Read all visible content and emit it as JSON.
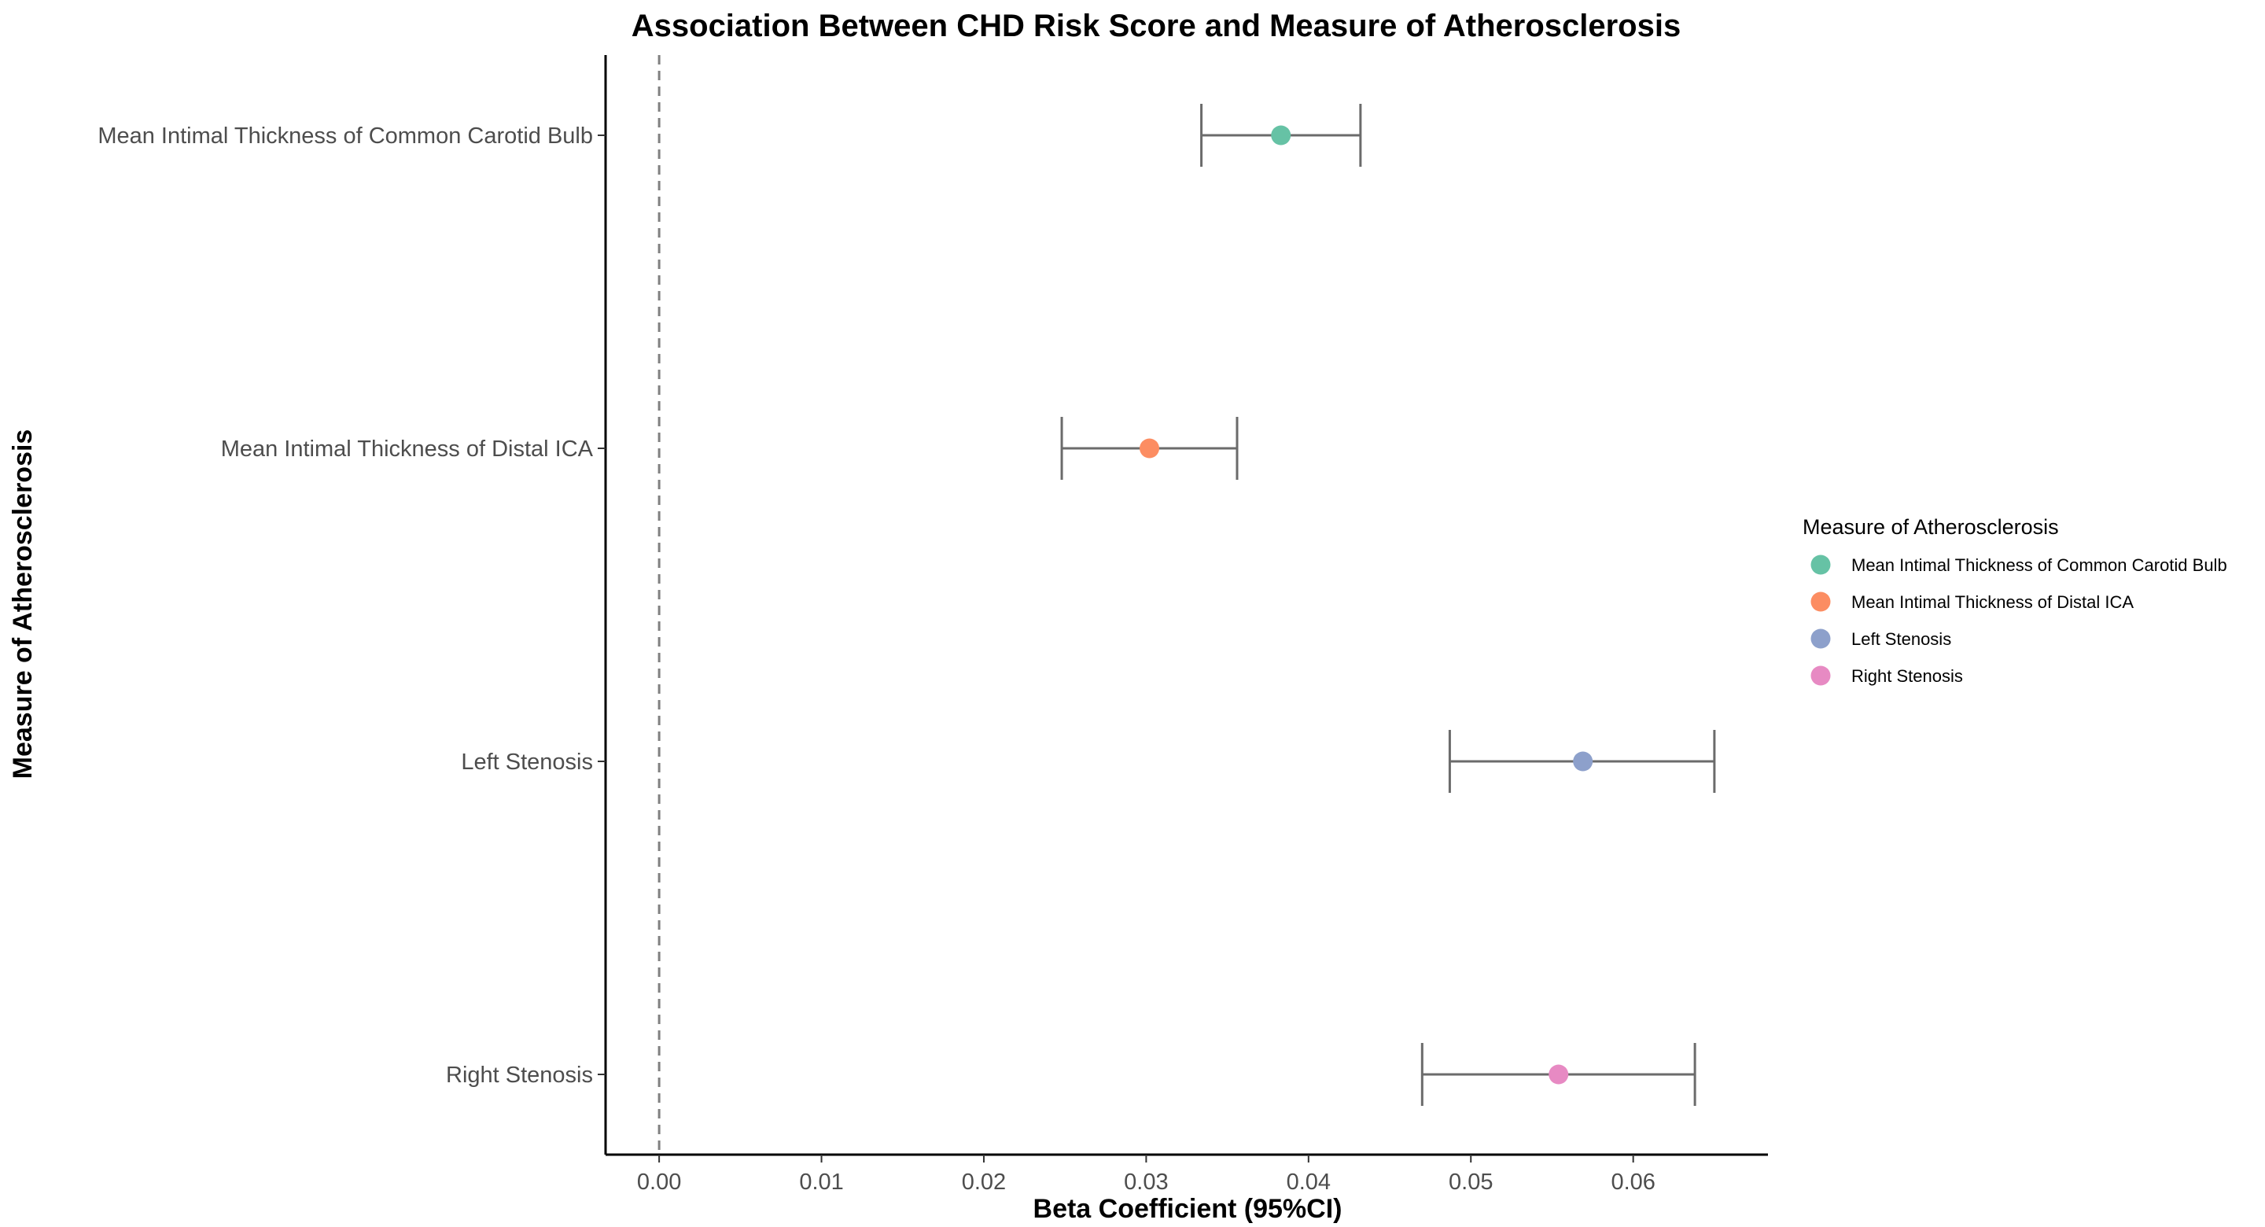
{
  "chart_data": {
    "type": "scatter",
    "title": "Association Between CHD Risk Score and Measure of Atherosclerosis",
    "xlabel": "Beta Coefficient (95%CI)",
    "ylabel": "Measure of Atherosclerosis",
    "xlim": [
      -0.0033,
      0.0683
    ],
    "x_ticks": [
      0.0,
      0.01,
      0.02,
      0.03,
      0.04,
      0.05,
      0.06
    ],
    "x_tick_labels": [
      "0.00",
      "0.01",
      "0.02",
      "0.03",
      "0.04",
      "0.05",
      "0.06"
    ],
    "reference_line": {
      "x": 0,
      "style": "dashed"
    },
    "grid": false,
    "legend": {
      "title": "Measure of Atherosclerosis",
      "placement": "right"
    },
    "categories": [
      "Mean Intimal Thickness of Common Carotid Bulb",
      "Mean Intimal Thickness of Distal ICA",
      "Left Stenosis",
      "Right Stenosis"
    ],
    "series": [
      {
        "name": "Mean Intimal Thickness of Common Carotid Bulb",
        "estimate": 0.0383,
        "ci_lower": 0.0334,
        "ci_upper": 0.0432,
        "color": "#66C2A5"
      },
      {
        "name": "Mean Intimal Thickness of Distal ICA",
        "estimate": 0.0302,
        "ci_lower": 0.0248,
        "ci_upper": 0.0356,
        "color": "#FC8D62"
      },
      {
        "name": "Left Stenosis",
        "estimate": 0.0569,
        "ci_lower": 0.0487,
        "ci_upper": 0.065,
        "color": "#8DA0CB"
      },
      {
        "name": "Right Stenosis",
        "estimate": 0.0554,
        "ci_lower": 0.047,
        "ci_upper": 0.0638,
        "color": "#E78AC3"
      }
    ]
  }
}
